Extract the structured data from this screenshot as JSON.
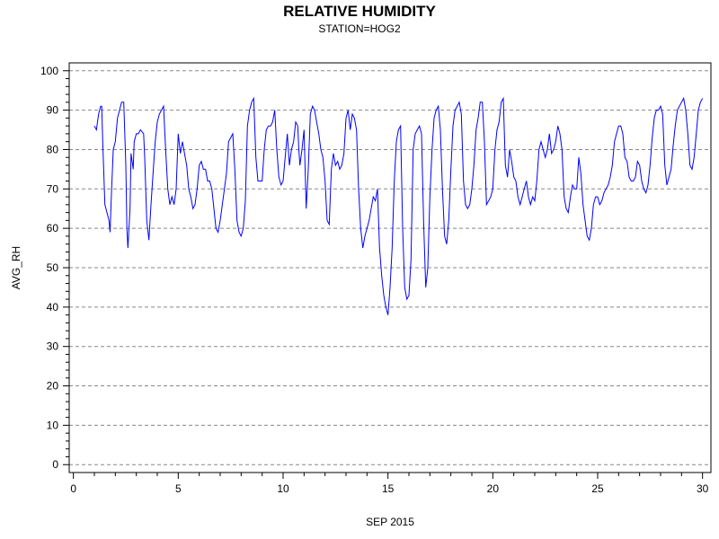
{
  "chart_data": {
    "type": "line",
    "title": "RELATIVE HUMIDITY",
    "subtitle": "STATION=HOG2",
    "xlabel": "SEP 2015",
    "ylabel": "AVG_RH",
    "xlim": [
      -0.2,
      30.4
    ],
    "ylim": [
      -2,
      102
    ],
    "xticks": [
      0,
      5,
      10,
      15,
      20,
      25,
      30
    ],
    "yticks": [
      0,
      10,
      20,
      30,
      40,
      50,
      60,
      70,
      80,
      90,
      100
    ],
    "grid": "horizontal-dashed",
    "line_color": "#0000ff",
    "series": [
      {
        "x": [
          1.0,
          1.1,
          1.2,
          1.3,
          1.35,
          1.4,
          1.5,
          1.6,
          1.7,
          1.75,
          1.8,
          1.9,
          2.0,
          2.1,
          2.3,
          2.4,
          2.5,
          2.55,
          2.6,
          2.7,
          2.75,
          2.8,
          2.85,
          2.9,
          3.0,
          3.1,
          3.2,
          3.35,
          3.4,
          3.5,
          3.6,
          3.7,
          3.8,
          3.9,
          4.0,
          4.1,
          4.2,
          4.3,
          4.4,
          4.5,
          4.6,
          4.7,
          4.8,
          4.9,
          5.0,
          5.1,
          5.2,
          5.3,
          5.4,
          5.5,
          5.6,
          5.7,
          5.8,
          5.9,
          6.0,
          6.1,
          6.2,
          6.3,
          6.4,
          6.5,
          6.6,
          6.7,
          6.8,
          6.9,
          7.0,
          7.2,
          7.3,
          7.4,
          7.5,
          7.6,
          7.7,
          7.8,
          7.9,
          8.0,
          8.1,
          8.2,
          8.3,
          8.4,
          8.5,
          8.6,
          8.7,
          8.8,
          9.0,
          9.1,
          9.2,
          9.3,
          9.4,
          9.5,
          9.6,
          9.7,
          9.8,
          9.9,
          10.0,
          10.1,
          10.2,
          10.3,
          10.4,
          10.5,
          10.6,
          10.7,
          10.75,
          10.8,
          10.9,
          11.0,
          11.1,
          11.2,
          11.3,
          11.4,
          11.5,
          11.6,
          11.7,
          11.8,
          11.9,
          12.0,
          12.1,
          12.2,
          12.3,
          12.4,
          12.5,
          12.6,
          12.7,
          12.8,
          12.9,
          13.0,
          13.1,
          13.2,
          13.3,
          13.4,
          13.5,
          13.6,
          13.7,
          13.8,
          13.9,
          14.0,
          14.1,
          14.2,
          14.3,
          14.4,
          14.5,
          14.6,
          14.7,
          14.8,
          14.9,
          15.0,
          15.1,
          15.2,
          15.3,
          15.4,
          15.5,
          15.6,
          15.7,
          15.8,
          15.9,
          16.0,
          16.1,
          16.2,
          16.3,
          16.4,
          16.5,
          16.6,
          16.7,
          16.8,
          16.9,
          17.0,
          17.1,
          17.2,
          17.3,
          17.4,
          17.5,
          17.6,
          17.7,
          17.8,
          17.9,
          18.0,
          18.1,
          18.2,
          18.3,
          18.4,
          18.5,
          18.6,
          18.7,
          18.8,
          18.9,
          19.0,
          19.1,
          19.2,
          19.3,
          19.4,
          19.5,
          19.6,
          19.7,
          19.8,
          19.9,
          20.0,
          20.1,
          20.2,
          20.3,
          20.4,
          20.5,
          20.6,
          20.7,
          20.8,
          20.9,
          21.0,
          21.1,
          21.2,
          21.3,
          21.4,
          21.5,
          21.6,
          21.7,
          21.8,
          21.9,
          22.0,
          22.1,
          22.2,
          22.3,
          22.4,
          22.5,
          22.6,
          22.7,
          22.8,
          22.9,
          23.0,
          23.1,
          23.2,
          23.3,
          23.4,
          23.5,
          23.6,
          23.7,
          23.8,
          23.9,
          24.0,
          24.1,
          24.2,
          24.3,
          24.4,
          24.5,
          24.6,
          24.7,
          24.8,
          24.9,
          25.0,
          25.1,
          25.2,
          25.3,
          25.4,
          25.5,
          25.6,
          25.7,
          25.8,
          25.9,
          26.0,
          26.1,
          26.2,
          26.3,
          26.4,
          26.5,
          26.6,
          26.7,
          26.8,
          26.9,
          27.0,
          27.1,
          27.2,
          27.3,
          27.4,
          27.5,
          27.6,
          27.7,
          27.8,
          27.9,
          28.0,
          28.1,
          28.2,
          28.3,
          28.4,
          28.5,
          28.6,
          28.7,
          28.8,
          28.9,
          29.0,
          29.1,
          29.2,
          29.3,
          29.4,
          29.5,
          29.6,
          29.7,
          29.8,
          29.9,
          30.0
        ],
        "y": [
          86,
          85,
          89,
          91,
          91,
          82,
          66,
          64,
          62,
          59,
          67,
          80,
          82,
          88,
          92,
          92,
          76,
          60,
          55,
          65,
          79,
          77,
          75,
          82,
          84,
          84,
          85,
          84,
          78,
          62,
          57,
          66,
          74,
          82,
          87,
          89,
          90,
          91,
          80,
          70,
          66,
          68,
          66,
          70,
          84,
          79,
          82,
          79,
          76,
          70,
          68,
          65,
          66,
          70,
          76,
          77,
          75,
          75,
          72,
          72,
          70,
          65,
          60,
          59,
          62,
          70,
          74,
          82,
          83,
          84,
          75,
          62,
          59,
          58,
          60,
          67,
          86,
          90,
          92,
          93,
          78,
          72,
          72,
          80,
          85,
          86,
          86,
          87,
          90,
          80,
          73,
          71,
          72,
          78,
          84,
          76,
          80,
          82,
          87,
          86,
          80,
          76,
          80,
          85,
          65,
          75,
          89,
          91,
          90,
          87,
          84,
          80,
          78,
          72,
          62,
          61,
          75,
          79,
          76,
          77,
          75,
          76,
          79,
          88,
          90,
          85,
          89,
          88,
          85,
          70,
          60,
          55,
          58,
          60,
          62,
          65,
          68,
          67,
          70,
          55,
          48,
          43,
          40,
          38,
          45,
          55,
          72,
          82,
          85,
          86,
          60,
          45,
          42,
          43,
          52,
          80,
          84,
          85,
          86,
          84,
          62,
          45,
          50,
          68,
          80,
          88,
          90,
          91,
          85,
          70,
          58,
          56,
          62,
          75,
          86,
          90,
          91,
          92,
          89,
          72,
          66,
          65,
          66,
          70,
          76,
          85,
          88,
          92,
          92,
          82,
          66,
          67,
          68,
          70,
          80,
          85,
          87,
          92,
          93,
          76,
          73,
          80,
          77,
          73,
          72,
          68,
          66,
          68,
          70,
          72,
          68,
          66,
          68,
          67,
          72,
          80,
          82,
          80,
          78,
          80,
          84,
          79,
          80,
          82,
          86,
          84,
          80,
          68,
          65,
          64,
          68,
          71,
          70,
          70,
          78,
          74,
          66,
          62,
          58,
          57,
          60,
          66,
          68,
          68,
          66,
          67,
          69,
          70,
          71,
          73,
          76,
          82,
          84,
          86,
          86,
          84,
          78,
          77,
          73,
          72,
          72,
          73,
          77,
          76,
          72,
          70,
          69,
          71,
          76,
          83,
          88,
          90,
          90,
          91,
          89,
          76,
          71,
          73,
          75,
          81,
          86,
          90,
          91,
          92,
          93,
          90,
          84,
          76,
          75,
          78,
          84,
          90,
          92,
          93
        ]
      }
    ]
  }
}
